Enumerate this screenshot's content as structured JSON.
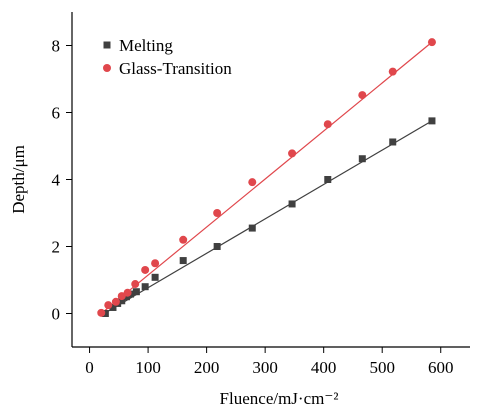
{
  "chart_data": {
    "type": "scatter",
    "xlabel": "Fluence/mJ·cm⁻²",
    "ylabel": "Depth/μm",
    "xlim": [
      -30,
      650
    ],
    "ylim": [
      -1,
      9
    ],
    "xticks": [
      0,
      100,
      200,
      300,
      400,
      500,
      600
    ],
    "yticks": [
      0,
      2,
      4,
      6,
      8
    ],
    "grid": false,
    "legend_position": "top-left",
    "series": [
      {
        "name": "Melting",
        "marker": "square",
        "color": "#404040",
        "fit_line": [
          [
            25,
            0.0
          ],
          [
            585,
            5.75
          ]
        ],
        "points": [
          [
            27,
            0.0
          ],
          [
            40,
            0.18
          ],
          [
            48,
            0.3
          ],
          [
            55,
            0.38
          ],
          [
            63,
            0.5
          ],
          [
            70,
            0.58
          ],
          [
            80,
            0.65
          ],
          [
            95,
            0.8
          ],
          [
            112,
            1.08
          ],
          [
            160,
            1.58
          ],
          [
            218,
            2.0
          ],
          [
            278,
            2.55
          ],
          [
            346,
            3.27
          ],
          [
            407,
            4.0
          ],
          [
            466,
            4.62
          ],
          [
            518,
            5.12
          ],
          [
            585,
            5.75
          ]
        ]
      },
      {
        "name": "Glass-Transition",
        "marker": "circle",
        "color": "#e0474c",
        "fit_line": [
          [
            20,
            0.0
          ],
          [
            585,
            8.1
          ]
        ],
        "points": [
          [
            20,
            0.02
          ],
          [
            32,
            0.25
          ],
          [
            45,
            0.35
          ],
          [
            55,
            0.52
          ],
          [
            65,
            0.62
          ],
          [
            78,
            0.88
          ],
          [
            95,
            1.3
          ],
          [
            112,
            1.5
          ],
          [
            160,
            2.2
          ],
          [
            218,
            3.0
          ],
          [
            278,
            3.92
          ],
          [
            346,
            4.78
          ],
          [
            407,
            5.65
          ],
          [
            466,
            6.52
          ],
          [
            518,
            7.22
          ],
          [
            585,
            8.1
          ]
        ]
      }
    ]
  }
}
